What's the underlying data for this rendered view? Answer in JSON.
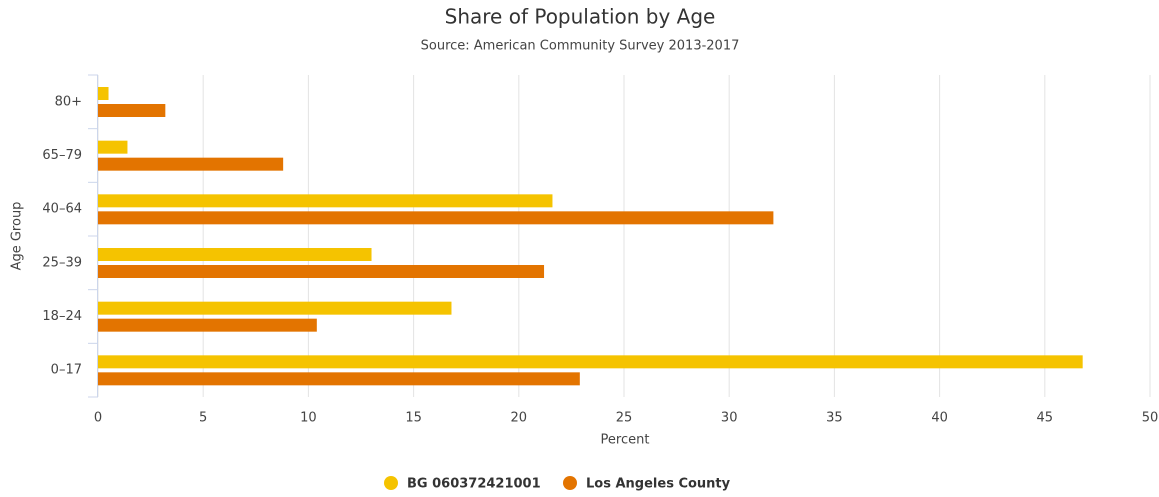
{
  "chart_data": {
    "type": "hbar",
    "title": "Share of Population by Age",
    "subtitle": "Source: American Community Survey 2013-2017",
    "x_label": "Percent",
    "y_label": "Age Group",
    "categories": [
      "80+",
      "65–79",
      "40–64",
      "25–39",
      "18–24",
      "0–17"
    ],
    "series": [
      {
        "name": "BG 060372421001",
        "color": "#f5c300",
        "values": [
          0.5,
          1.4,
          21.6,
          13.0,
          16.8,
          46.8
        ]
      },
      {
        "name": "Los Angeles County",
        "color": "#e37400",
        "values": [
          3.2,
          8.8,
          32.1,
          21.2,
          10.4,
          22.9
        ]
      }
    ],
    "xlim": [
      0,
      50
    ],
    "xticks": [
      0,
      5,
      10,
      15,
      20,
      25,
      30,
      35,
      40,
      45,
      50
    ],
    "grid": true
  }
}
